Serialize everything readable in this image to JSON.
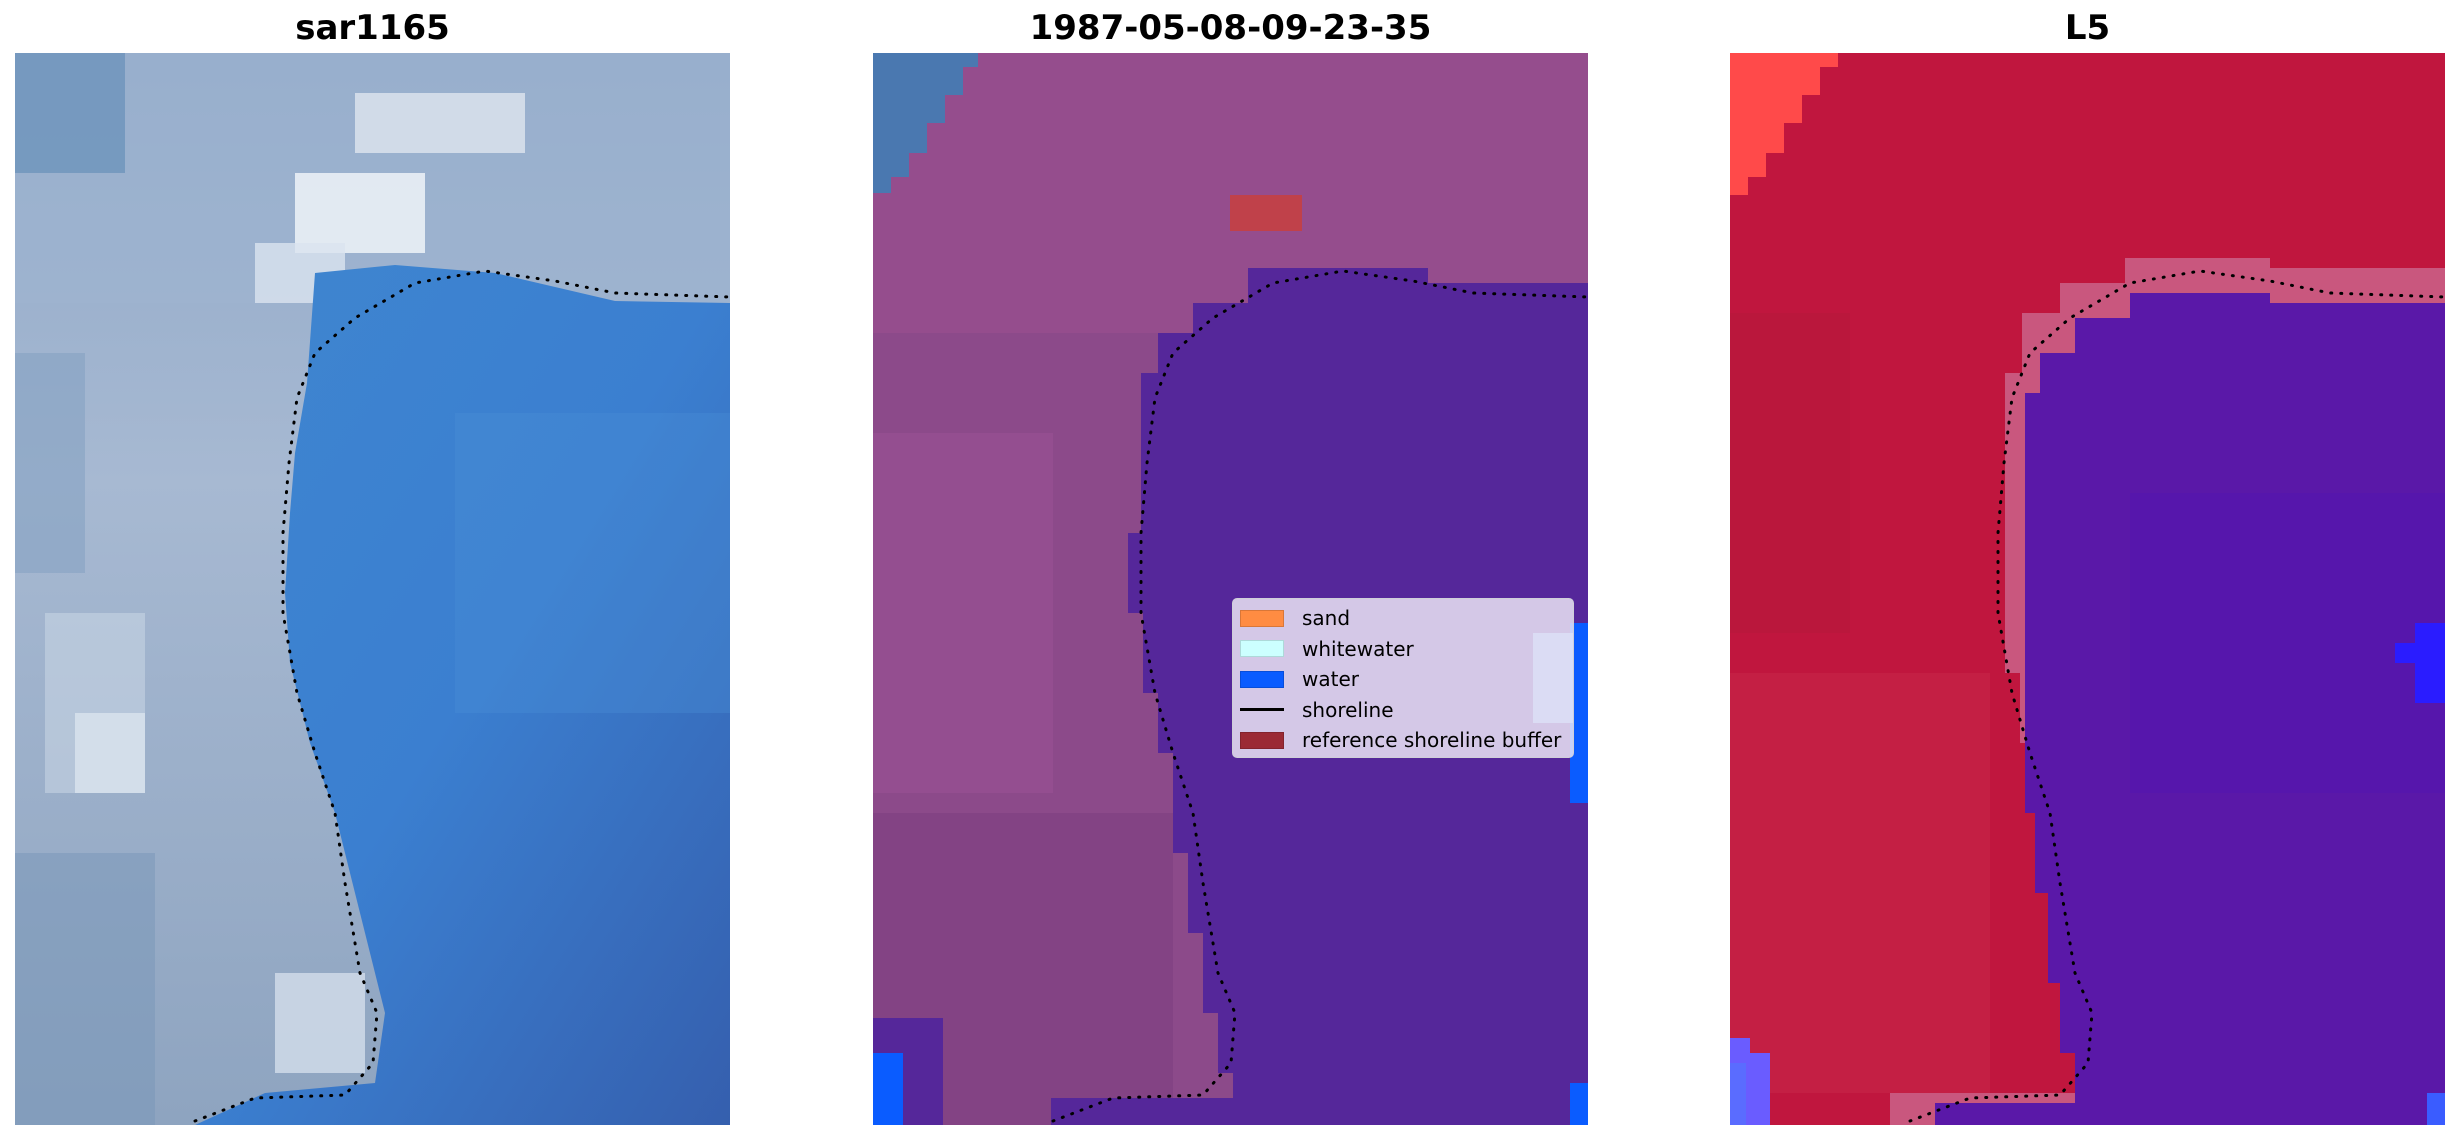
{
  "panels": [
    {
      "title": "sar1165"
    },
    {
      "title": "1987-05-08-09-23-35"
    },
    {
      "title": "L5"
    }
  ],
  "legend": {
    "items": [
      {
        "label": "sand",
        "color": "#ff8c42",
        "kind": "patch"
      },
      {
        "label": "whitewater",
        "color": "#ccffff",
        "kind": "patch"
      },
      {
        "label": "water",
        "color": "#0a5cff",
        "kind": "patch"
      },
      {
        "label": "shoreline",
        "color": "#000000",
        "kind": "line"
      },
      {
        "label": "reference shoreline buffer",
        "color": "#9b2a35",
        "kind": "patch"
      }
    ]
  },
  "colors": {
    "rgb_sand": "#b8c6da",
    "rgb_water": "#3c78c4",
    "class_land": "#8c4a8a",
    "class_water": "#55279a",
    "index_land": "#c0163e",
    "index_water": "#5a18a8"
  }
}
